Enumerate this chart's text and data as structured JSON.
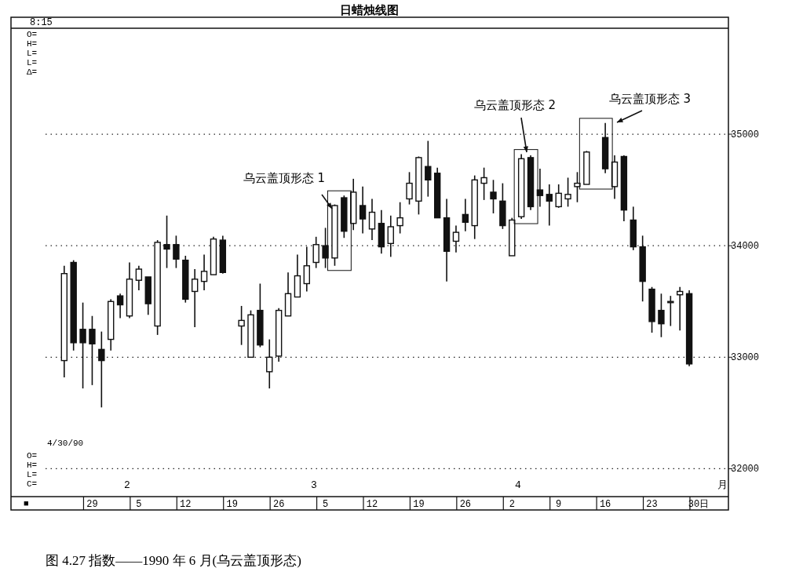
{
  "chart_data": {
    "type": "candlestick",
    "title": "日蜡烛线图",
    "categories": [
      null,
      null,
      null,
      "29",
      null,
      null,
      null,
      null,
      "5",
      null,
      null,
      null,
      null,
      "12",
      null,
      null,
      null,
      null,
      "19",
      null,
      null,
      null,
      null,
      "26",
      null,
      null,
      null,
      null,
      "5",
      null,
      null,
      null,
      null,
      "12",
      null,
      null,
      null,
      null,
      "19",
      null,
      null,
      null,
      null,
      "26",
      null,
      null,
      null,
      null,
      "2",
      null,
      null,
      null,
      null,
      "9",
      null,
      null,
      null,
      null,
      "16",
      null,
      null,
      null,
      null,
      "23",
      null,
      null,
      null,
      null,
      "30日"
    ],
    "ohlc": [
      [
        32970,
        33820,
        32820,
        33750
      ],
      [
        33850,
        33870,
        33060,
        33130
      ],
      [
        33250,
        33490,
        32720,
        33130
      ],
      [
        33250,
        33370,
        32750,
        33120
      ],
      [
        33070,
        33230,
        32550,
        32970
      ],
      [
        33160,
        33520,
        33060,
        33500
      ],
      [
        33550,
        33570,
        33350,
        33470
      ],
      [
        33370,
        33850,
        33350,
        33700
      ],
      [
        33690,
        33820,
        33600,
        33790
      ],
      [
        33720,
        33720,
        33380,
        33480
      ],
      [
        33280,
        34050,
        33200,
        34030
      ],
      [
        34010,
        34270,
        33800,
        33970
      ],
      [
        34010,
        34090,
        33800,
        33880
      ],
      [
        33870,
        33910,
        33490,
        33520
      ],
      [
        33590,
        33790,
        33270,
        33700
      ],
      [
        33680,
        33920,
        33600,
        33770
      ],
      [
        33740,
        34080,
        33740,
        34060
      ],
      [
        34050,
        34090,
        33750,
        33760
      ],
      null,
      [
        33280,
        33460,
        33110,
        33330
      ],
      [
        33000,
        33420,
        33000,
        33380
      ],
      [
        33420,
        33660,
        33090,
        33110
      ],
      [
        32870,
        33160,
        32720,
        33000
      ],
      [
        33010,
        33440,
        32960,
        33420
      ],
      [
        33370,
        33760,
        33370,
        33570
      ],
      [
        33540,
        33920,
        33540,
        33730
      ],
      [
        33660,
        33990,
        33590,
        33820
      ],
      [
        33850,
        34080,
        33800,
        34010
      ],
      [
        34000,
        34160,
        33800,
        33890
      ],
      [
        33890,
        34370,
        33820,
        34360
      ],
      [
        34430,
        34450,
        34070,
        34130
      ],
      [
        34200,
        34600,
        34140,
        34480
      ],
      [
        34360,
        34530,
        34110,
        34240
      ],
      [
        34150,
        34420,
        34050,
        34300
      ],
      [
        34200,
        34320,
        33930,
        33990
      ],
      [
        34020,
        34270,
        33900,
        34170
      ],
      [
        34180,
        34390,
        34110,
        34250
      ],
      [
        34420,
        34660,
        34370,
        34560
      ],
      [
        34400,
        34800,
        34280,
        34790
      ],
      [
        34710,
        34940,
        34440,
        34590
      ],
      [
        34650,
        34700,
        34250,
        34250
      ],
      [
        34250,
        34420,
        33680,
        33950
      ],
      [
        34040,
        34180,
        33940,
        34120
      ],
      [
        34280,
        34420,
        34130,
        34210
      ],
      [
        34180,
        34630,
        34060,
        34590
      ],
      [
        34560,
        34700,
        34410,
        34610
      ],
      [
        34480,
        34590,
        34290,
        34420
      ],
      [
        34400,
        34560,
        34150,
        34180
      ],
      [
        33910,
        34250,
        33910,
        34230
      ],
      [
        34260,
        34820,
        34240,
        34780
      ],
      [
        34790,
        34810,
        34320,
        34350
      ],
      [
        34500,
        34690,
        34350,
        34450
      ],
      [
        34460,
        34550,
        34180,
        34400
      ],
      [
        34350,
        34550,
        34340,
        34470
      ],
      [
        34420,
        34610,
        34350,
        34460
      ],
      [
        34530,
        34660,
        34390,
        34560
      ],
      [
        34550,
        34850,
        34550,
        34840
      ],
      null,
      [
        34970,
        35100,
        34650,
        34690
      ],
      [
        34530,
        34810,
        34420,
        34750
      ],
      [
        34800,
        34810,
        34220,
        34320
      ],
      [
        34230,
        34350,
        33960,
        33990
      ],
      [
        33990,
        34090,
        33500,
        33680
      ],
      [
        33610,
        33630,
        33220,
        33320
      ],
      [
        33420,
        33570,
        33180,
        33300
      ],
      [
        33490,
        33550,
        33280,
        33500
      ],
      [
        33560,
        33630,
        33240,
        33590
      ],
      [
        33570,
        33600,
        32920,
        32940
      ],
      null
    ],
    "ylim": [
      31750,
      35950
    ],
    "yticks": [
      32000,
      33000,
      34000,
      35000
    ],
    "grid": "y",
    "annotations": [
      "8:15",
      "O=",
      "H=",
      "L=",
      "L=",
      "Δ=",
      "4/30/90",
      "O=",
      "H=",
      "L=",
      "C=",
      "■",
      "2",
      "3",
      "4",
      "月",
      "乌云盖顶形态 1",
      "乌云盖顶形态 2",
      "乌云盖顶形态 3",
      "图 4.27  指数——1990 年 6 月(乌云盖顶形态)"
    ]
  }
}
